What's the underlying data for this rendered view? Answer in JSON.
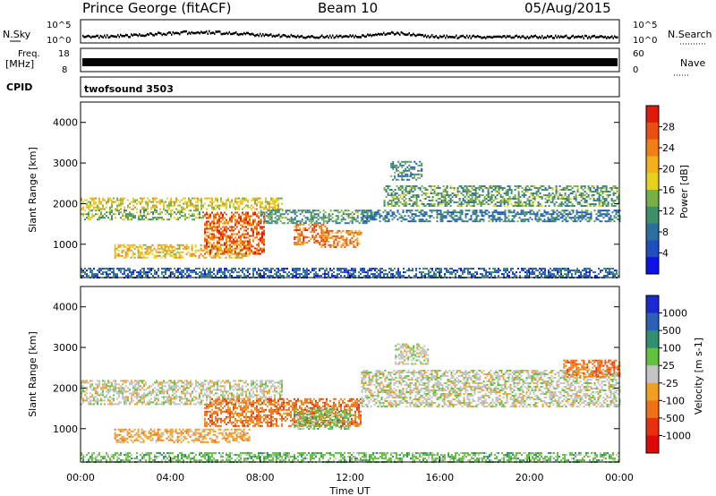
{
  "header": {
    "station": "Prince George (fitACF)",
    "beam": "Beam 10",
    "date": "05/Aug/2015"
  },
  "strip": {
    "nsky_label": "N.Sky",
    "nsky_ticks": [
      "10^5",
      "10^0"
    ],
    "nsearch_label": "N.Search",
    "nsearch_ticks": [
      "10^5",
      "10^0"
    ],
    "freq_label_1": "Freq.",
    "freq_label_2": "[MHz]",
    "freq_ticks": [
      "18",
      "8"
    ],
    "nave_label": "Nave",
    "nave_ticks": [
      "60",
      "0"
    ],
    "cpid_label": "CPID",
    "cpid_value": "twofsound 3503"
  },
  "chart_data": [
    {
      "type": "heatmap",
      "name": "power-panel",
      "xlabel": "Time UT",
      "ylabel": "Slant Range [km]",
      "xlim": [
        0,
        24
      ],
      "ylim": [
        180,
        4500
      ],
      "yticks": [
        "4000",
        "3000",
        "2000",
        "1000"
      ],
      "yticks_values": [
        4000,
        3000,
        2000,
        1000
      ],
      "colorbar": {
        "label": "Power [dB]",
        "ticks": [
          "28",
          "24",
          "20",
          "16",
          "12",
          "8",
          "4"
        ],
        "tick_values": [
          28,
          24,
          20,
          16,
          12,
          8,
          4
        ],
        "range": [
          0,
          32
        ],
        "colors": [
          "#0a12e8",
          "#1f4fbf",
          "#2c6ea0",
          "#3f8f6a",
          "#78b048",
          "#e6d21e",
          "#f2b019",
          "#f07f16",
          "#e8500f",
          "#e01a0a"
        ]
      },
      "bands": [
        {
          "t0": 0.0,
          "t1": 9.0,
          "r0": 1850,
          "r1": 2150,
          "level": 18
        },
        {
          "t0": 0.0,
          "t1": 5.5,
          "r0": 1600,
          "r1": 1850,
          "level": 14
        },
        {
          "t0": 1.5,
          "t1": 7.5,
          "r0": 650,
          "r1": 1000,
          "level": 20
        },
        {
          "t0": 5.5,
          "t1": 8.2,
          "r0": 750,
          "r1": 1800,
          "level": 27
        },
        {
          "t0": 9.5,
          "t1": 11.0,
          "r0": 1000,
          "r1": 1500,
          "level": 26
        },
        {
          "t0": 10.7,
          "t1": 12.5,
          "r0": 950,
          "r1": 1350,
          "level": 25
        },
        {
          "t0": 8.0,
          "t1": 13.0,
          "r0": 1500,
          "r1": 1850,
          "level": 11
        },
        {
          "t0": 12.5,
          "t1": 24.0,
          "r0": 1550,
          "r1": 1850,
          "level": 8
        },
        {
          "t0": 13.5,
          "t1": 24.0,
          "r0": 1950,
          "r1": 2450,
          "level": 12
        },
        {
          "t0": 13.8,
          "t1": 15.2,
          "r0": 2600,
          "r1": 3050,
          "level": 9
        },
        {
          "t0": 0.0,
          "t1": 24.0,
          "r0": 180,
          "r1": 420,
          "level": 6
        }
      ]
    },
    {
      "type": "heatmap",
      "name": "velocity-panel",
      "xlabel": "Time UT",
      "ylabel": "Slant Range [km]",
      "xlim": [
        0,
        24
      ],
      "ylim": [
        180,
        4500
      ],
      "yticks": [
        "4000",
        "3000",
        "2000",
        "1000"
      ],
      "yticks_values": [
        4000,
        3000,
        2000,
        1000
      ],
      "xticks": [
        "00:00",
        "04:00",
        "08:00",
        "12:00",
        "16:00",
        "20:00",
        "00:00"
      ],
      "xticks_values": [
        0,
        4,
        8,
        12,
        16,
        20,
        24
      ],
      "colorbar": {
        "label": "Velocity [m s-1]",
        "ticks": [
          "1000",
          "500",
          "100",
          "25",
          "-25",
          "-100",
          "-500",
          "-1000"
        ],
        "tick_values": [
          1000,
          500,
          100,
          25,
          -25,
          -100,
          -500,
          -1000
        ],
        "colors": [
          "#1a2ad0",
          "#2d5fb8",
          "#2f8f70",
          "#62c23c",
          "#c4c4c4",
          "#f0a020",
          "#f07018",
          "#e83010",
          "#e00808"
        ]
      },
      "bands": [
        {
          "t0": 0.0,
          "t1": 9.0,
          "r0": 1600,
          "r1": 2200,
          "level": 4
        },
        {
          "t0": 1.5,
          "t1": 7.5,
          "r0": 650,
          "r1": 1000,
          "level": 5
        },
        {
          "t0": 5.5,
          "t1": 12.5,
          "r0": 1050,
          "r1": 1750,
          "level": 6
        },
        {
          "t0": 9.5,
          "t1": 12.0,
          "r0": 1000,
          "r1": 1500,
          "level": 3
        },
        {
          "t0": 12.5,
          "t1": 24.0,
          "r0": 1550,
          "r1": 2450,
          "level": 4
        },
        {
          "t0": 14.0,
          "t1": 15.5,
          "r0": 2600,
          "r1": 3100,
          "level": 4
        },
        {
          "t0": 21.5,
          "t1": 24.0,
          "r0": 2300,
          "r1": 2700,
          "level": 6
        },
        {
          "t0": 0.0,
          "t1": 24.0,
          "r0": 180,
          "r1": 420,
          "level": 3
        }
      ]
    }
  ]
}
